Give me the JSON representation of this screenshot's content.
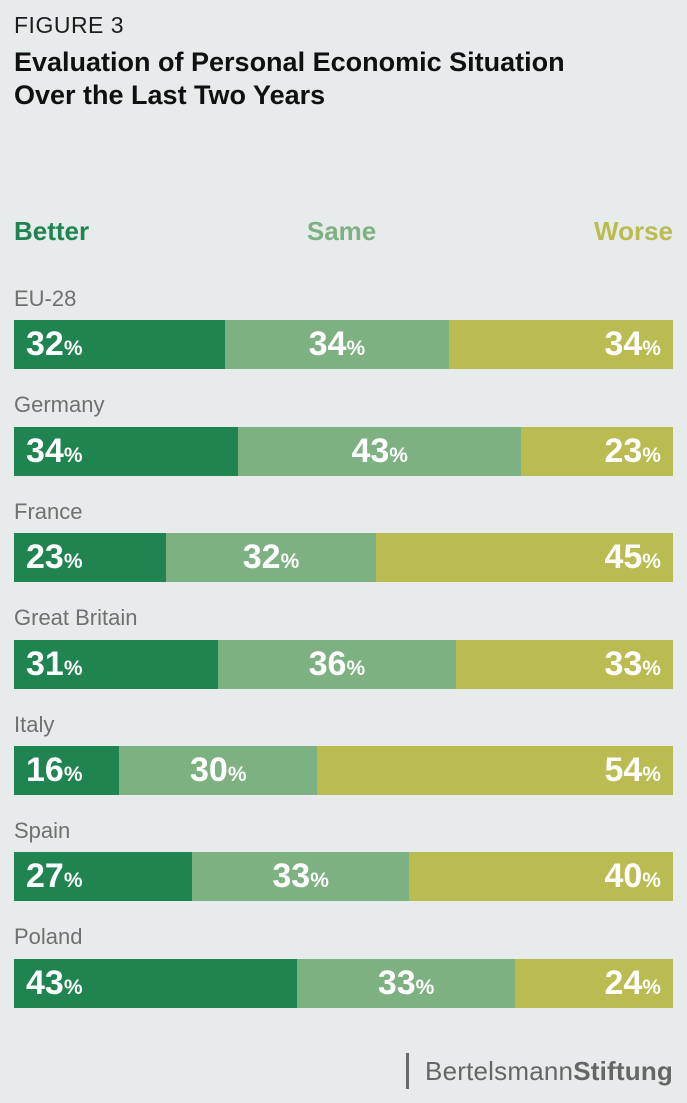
{
  "figure_label": "FIGURE 3",
  "title_lines": [
    "Evaluation of Personal Economic Situation",
    "Over the Last Two Years"
  ],
  "chart_data": {
    "type": "bar",
    "variant": "horizontal-stacked-100pct",
    "title": "Evaluation of Personal Economic Situation Over the Last Two Years",
    "categories": [
      "EU-28",
      "Germany",
      "France",
      "Great Britain",
      "Italy",
      "Spain",
      "Poland"
    ],
    "series": [
      {
        "name": "Better",
        "color": "#1f8450",
        "values": [
          32,
          34,
          23,
          31,
          16,
          27,
          43
        ]
      },
      {
        "name": "Same",
        "color": "#7db181",
        "values": [
          34,
          43,
          32,
          36,
          30,
          33,
          33
        ]
      },
      {
        "name": "Worse",
        "color": "#babc51",
        "values": [
          34,
          23,
          45,
          33,
          54,
          40,
          24
        ]
      }
    ],
    "value_suffix": "%",
    "xlim": [
      0,
      100
    ],
    "legend_position": "top",
    "grid": false
  },
  "footer": {
    "brand_first": "Bertelsmann",
    "brand_second": "Stiftung"
  },
  "colors": {
    "background": "#e8ebeb",
    "better": "#1f8450",
    "same": "#7db181",
    "worse": "#babc51",
    "country_label": "#707070",
    "title_text": "#101010",
    "bar_value_text": "#ffffff",
    "brand_text": "#666666"
  }
}
